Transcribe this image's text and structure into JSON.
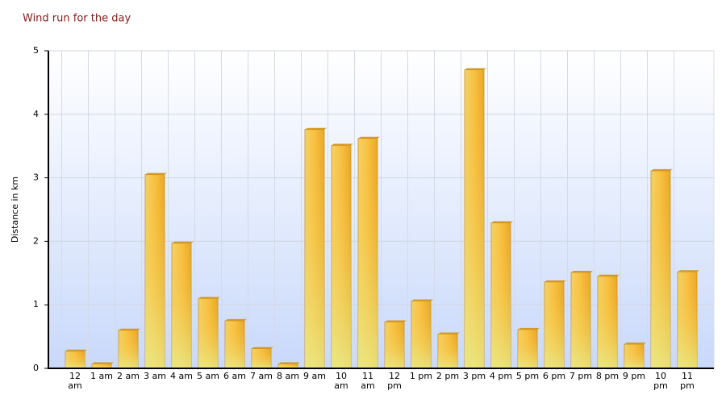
{
  "chart_data": {
    "type": "bar",
    "title": "Wind run for the day",
    "y_label": "Distance in km",
    "categories": [
      "12 am",
      "1 am",
      "2 am",
      "3 am",
      "4 am",
      "5 am",
      "6 am",
      "7 am",
      "8 am",
      "9 am",
      "10 am",
      "11 am",
      "12 pm",
      "1 pm",
      "2 pm",
      "3 pm",
      "4 pm",
      "5 pm",
      "6 pm",
      "7 pm",
      "8 pm",
      "9 pm",
      "10 pm",
      "11 pm"
    ],
    "values": [
      0.27,
      0.07,
      0.6,
      3.05,
      1.97,
      1.1,
      0.75,
      0.31,
      0.07,
      3.76,
      3.51,
      3.62,
      0.73,
      1.06,
      0.54,
      4.7,
      2.29,
      0.61,
      1.36,
      1.51,
      1.45,
      0.38,
      3.11,
      1.52
    ],
    "color": "#f9b934",
    "ylim": [
      0,
      5
    ],
    "yticks": [
      0,
      1,
      2,
      3,
      4,
      5
    ],
    "grid": true
  }
}
